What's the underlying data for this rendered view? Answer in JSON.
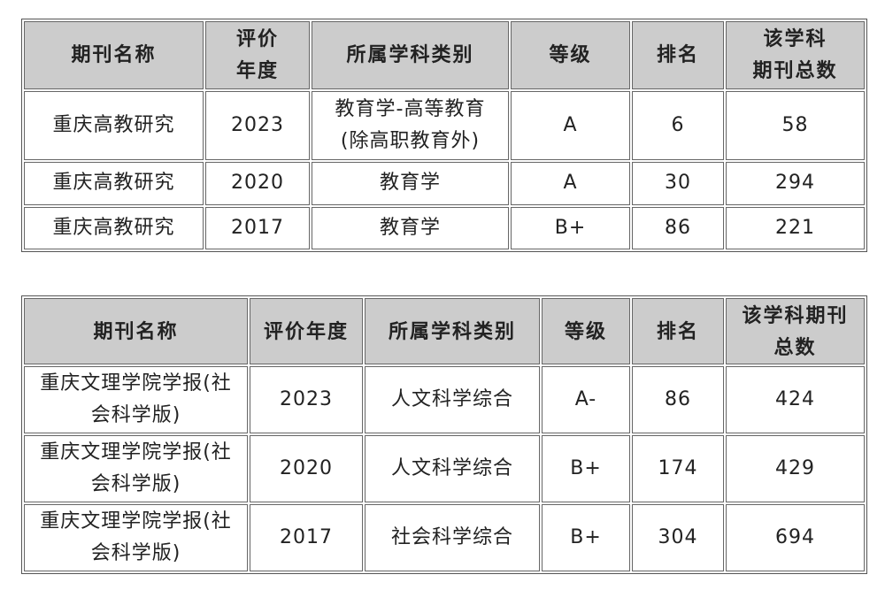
{
  "table1": {
    "headers": [
      "期刊名称",
      "评价\n年度",
      "所属学科类别",
      "等级",
      "排名",
      "该学科\n期刊总数"
    ],
    "rows": [
      [
        "重庆高教研究",
        "2023",
        "教育学-高等教育\n(除高职教育外)",
        "A",
        "6",
        "58"
      ],
      [
        "重庆高教研究",
        "2020",
        "教育学",
        "A",
        "30",
        "294"
      ],
      [
        "重庆高教研究",
        "2017",
        "教育学",
        "B+",
        "86",
        "221"
      ]
    ]
  },
  "table2": {
    "headers": [
      "期刊名称",
      "评价年度",
      "所属学科类别",
      "等级",
      "排名",
      "该学科期刊\n总数"
    ],
    "rows": [
      [
        "重庆文理学院学报(社\n会科学版)",
        "2023",
        "人文科学综合",
        "A-",
        "86",
        "424"
      ],
      [
        "重庆文理学院学报(社\n会科学版)",
        "2020",
        "人文科学综合",
        "B+",
        "174",
        "429"
      ],
      [
        "重庆文理学院学报(社\n会科学版)",
        "2017",
        "社会科学综合",
        "B+",
        "304",
        "694"
      ]
    ]
  }
}
